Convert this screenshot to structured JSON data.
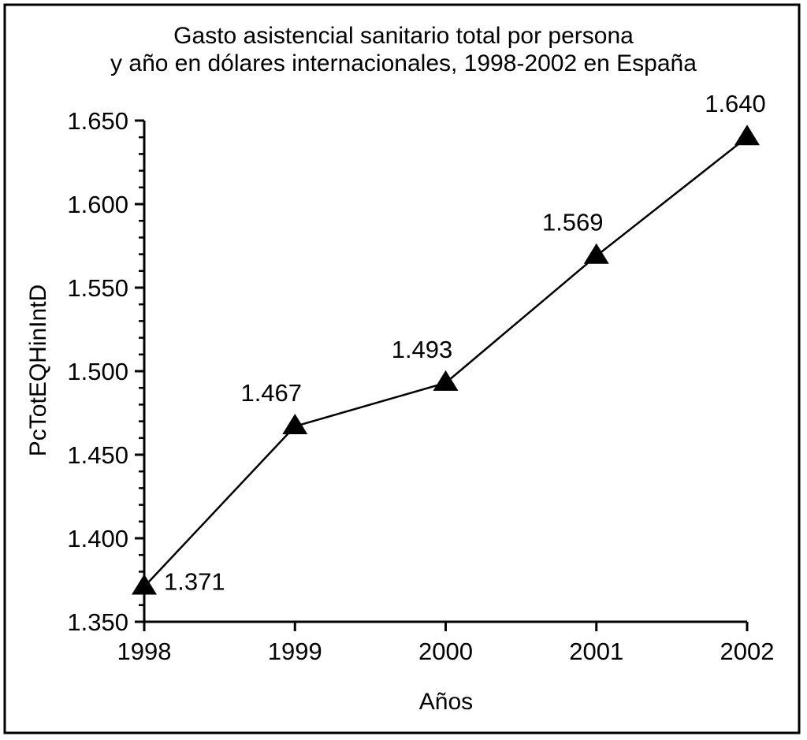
{
  "chart_data": {
    "type": "line",
    "title": [
      "Gasto asistencial sanitario total por persona",
      "y año en dólares internacionales, 1998-2002 en España"
    ],
    "xlabel": "Años",
    "ylabel": "PcTotEQHinIntD",
    "x": [
      1998,
      1999,
      2000,
      2001,
      2002
    ],
    "values": [
      1371,
      1467,
      1493,
      1569,
      1640
    ],
    "data_labels": [
      "1.371",
      "1.467",
      "1.493",
      "1.569",
      "1.640"
    ],
    "ylim": [
      1350,
      1650
    ],
    "yticks": [
      1350,
      1400,
      1450,
      1500,
      1550,
      1600,
      1650
    ],
    "ytick_labels": [
      "1.350",
      "1.400",
      "1.450",
      "1.500",
      "1.550",
      "1.600",
      "1.650"
    ],
    "xtick_labels": [
      "1998",
      "1999",
      "2000",
      "2001",
      "2002"
    ],
    "marker": "triangle",
    "color": "#000000",
    "grid": false
  }
}
